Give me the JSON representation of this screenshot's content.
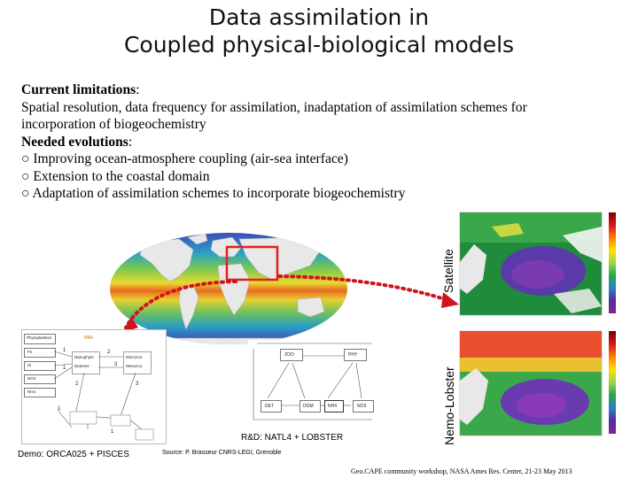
{
  "title": {
    "line1": "Data assimilation in",
    "line2": "Coupled physical-biological models"
  },
  "body": {
    "limitations_heading": "Current limitations",
    "limitations_colon": ":",
    "limitations_text_line1": "Spatial resolution, data frequency for assimilation, inadaptation of assimilation schemes for",
    "limitations_text_line2": "incorporation of biogeochemistry",
    "evolutions_heading": "Needed evolutions",
    "evolutions_colon": ":",
    "evolutions": [
      "○ Improving ocean-atmosphere coupling (air-sea interface)",
      "○ Extension to the coastal domain",
      "○ Adaptation of assimilation schemes to incorporate biogeochemistry"
    ]
  },
  "labels": {
    "satellite": "Satellite",
    "nemo_lobster": "Nemo-Lobster",
    "rd_caption": "R&D: NATL4 + LOBSTER",
    "demo_caption": "Demo: ORCA025 + PISCES",
    "source": "Source: P. Brasseur CNRS-LEGI, Grenoble",
    "footer": "Geo.CAPE community workshop, NASA Ames Res. Center, 21-23 May 2013"
  },
  "pisces_diagram": {
    "header": "Phytoplankton",
    "par_label": "PAR",
    "left_boxes": [
      "Fe",
      "Si",
      "NO3",
      "NH4"
    ],
    "groups": [
      "Nanophyto",
      "Diatoms",
      "Microzoo",
      "Mesozoo"
    ],
    "numbers": [
      "1",
      "2",
      "3",
      "1",
      "2",
      "3",
      "1",
      "1"
    ]
  },
  "lobster_diagram": {
    "top": [
      "ZOO",
      "PHY"
    ],
    "bottom": [
      "DET",
      "DOM",
      "NH4",
      "NO3"
    ]
  },
  "colors": {
    "map_box": "#e02020",
    "arrow": "#d0141e"
  },
  "icons": [
    "world-map-image",
    "satellite-chlorophyll-map",
    "model-chlorophyll-map",
    "pisces-diagram",
    "lobster-diagram"
  ]
}
